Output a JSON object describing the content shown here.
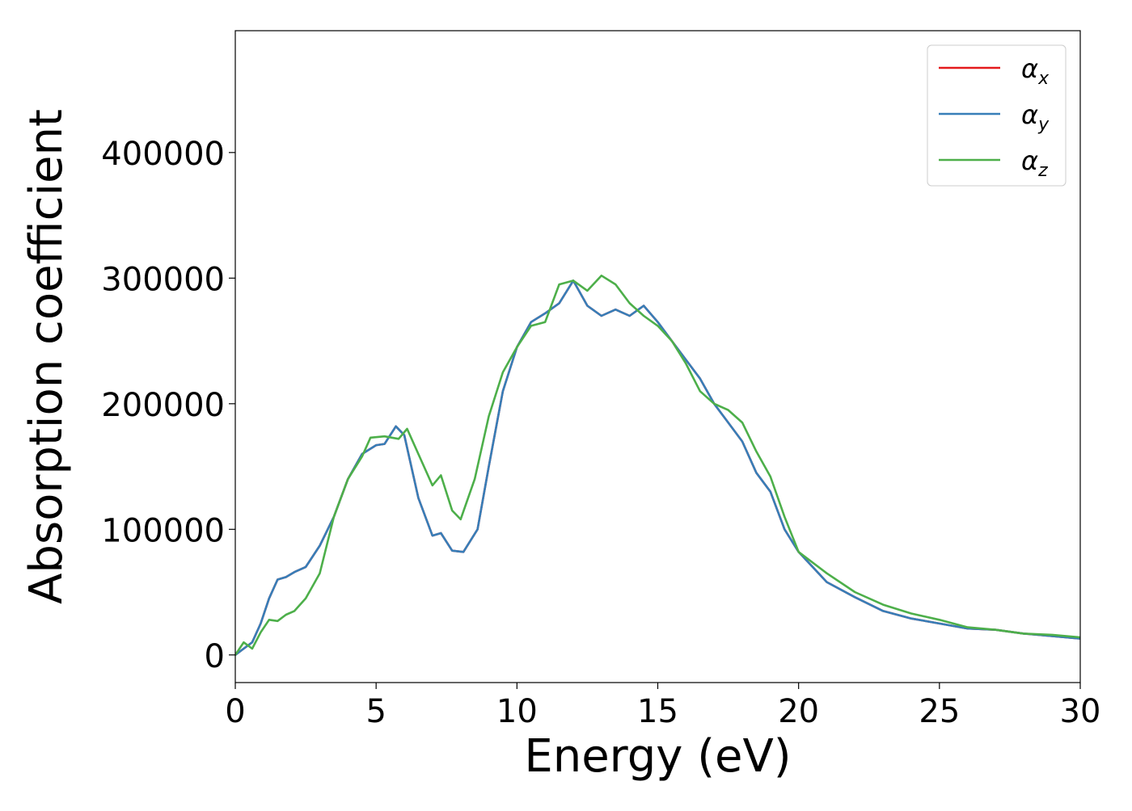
{
  "chart_data": {
    "type": "line",
    "xlabel": "Energy (eV)",
    "ylabel": "Absorption coefficient",
    "xlim": [
      0,
      30
    ],
    "ylim": [
      -22000,
      497000
    ],
    "xticks": [
      0,
      5,
      10,
      15,
      20,
      25,
      30
    ],
    "xtick_labels": [
      "0",
      "5",
      "10",
      "15",
      "20",
      "25",
      "30"
    ],
    "yticks": [
      0,
      100000,
      200000,
      300000,
      400000
    ],
    "ytick_labels": [
      "0",
      "100000",
      "200000",
      "300000",
      "400000"
    ],
    "grid": false,
    "legend": {
      "position": "top-right",
      "entries": [
        {
          "label": "α",
          "sub": "x",
          "color": "#e41a1c"
        },
        {
          "label": "α",
          "sub": "y",
          "color": "#377eb8"
        },
        {
          "label": "α",
          "sub": "z",
          "color": "#4daf4a"
        }
      ]
    },
    "series": [
      {
        "color": "#e41a1c",
        "x": [
          0,
          0.3,
          0.6,
          0.9,
          1.2,
          1.5,
          1.8,
          2.1,
          2.5,
          3,
          3.5,
          4,
          4.5,
          5,
          5.3,
          5.7,
          6,
          6.5,
          7,
          7.3,
          7.7,
          8.1,
          8.6,
          9,
          9.5,
          10,
          10.5,
          11,
          11.5,
          12,
          12.5,
          13,
          13.5,
          14,
          14.5,
          15,
          15.5,
          16,
          16.5,
          17,
          17.5,
          18,
          18.5,
          19,
          19.5,
          20,
          21,
          22,
          23,
          24,
          25,
          26,
          27,
          28,
          29,
          30
        ],
        "y": [
          0,
          5000,
          10000,
          25000,
          45000,
          60000,
          62000,
          66000,
          70000,
          87000,
          110000,
          140000,
          160000,
          167000,
          168000,
          182000,
          175000,
          125000,
          95000,
          97000,
          83000,
          82000,
          100000,
          150000,
          210000,
          245000,
          265000,
          272000,
          280000,
          298000,
          278000,
          270000,
          275000,
          270000,
          278000,
          265000,
          250000,
          235000,
          220000,
          200000,
          185000,
          170000,
          145000,
          130000,
          100000,
          82000,
          58000,
          46000,
          35000,
          29000,
          25000,
          21000,
          20000,
          17000,
          15000,
          13000
        ]
      },
      {
        "color": "#377eb8",
        "x": [
          0,
          0.3,
          0.6,
          0.9,
          1.2,
          1.5,
          1.8,
          2.1,
          2.5,
          3,
          3.5,
          4,
          4.5,
          5,
          5.3,
          5.7,
          6,
          6.5,
          7,
          7.3,
          7.7,
          8.1,
          8.6,
          9,
          9.5,
          10,
          10.5,
          11,
          11.5,
          12,
          12.5,
          13,
          13.5,
          14,
          14.5,
          15,
          15.5,
          16,
          16.5,
          17,
          17.5,
          18,
          18.5,
          19,
          19.5,
          20,
          21,
          22,
          23,
          24,
          25,
          26,
          27,
          28,
          29,
          30
        ],
        "y": [
          0,
          5000,
          10000,
          25000,
          45000,
          60000,
          62000,
          66000,
          70000,
          87000,
          110000,
          140000,
          160000,
          167000,
          168000,
          182000,
          175000,
          125000,
          95000,
          97000,
          83000,
          82000,
          100000,
          150000,
          210000,
          245000,
          265000,
          272000,
          280000,
          298000,
          278000,
          270000,
          275000,
          270000,
          278000,
          265000,
          250000,
          235000,
          220000,
          200000,
          185000,
          170000,
          145000,
          130000,
          100000,
          82000,
          58000,
          46000,
          35000,
          29000,
          25000,
          21000,
          20000,
          17000,
          15000,
          13000
        ]
      },
      {
        "color": "#4daf4a",
        "x": [
          0,
          0.3,
          0.6,
          0.9,
          1.2,
          1.5,
          1.8,
          2.1,
          2.5,
          3,
          3.5,
          4,
          4.5,
          4.8,
          5.3,
          5.8,
          6.1,
          6.5,
          7,
          7.3,
          7.7,
          8,
          8.5,
          9,
          9.5,
          10,
          10.5,
          11,
          11.5,
          12,
          12.5,
          13,
          13.5,
          14,
          14.5,
          15,
          15.5,
          16,
          16.5,
          17,
          17.5,
          18,
          18.5,
          19,
          19.5,
          20,
          21,
          22,
          23,
          24,
          25,
          26,
          27,
          28,
          29,
          30
        ],
        "y": [
          0,
          10000,
          5000,
          18000,
          28000,
          27000,
          32000,
          35000,
          45000,
          65000,
          110000,
          140000,
          158000,
          173000,
          174000,
          172000,
          180000,
          160000,
          135000,
          143000,
          115000,
          108000,
          140000,
          190000,
          225000,
          245000,
          262000,
          265000,
          295000,
          298000,
          290000,
          302000,
          295000,
          280000,
          270000,
          262000,
          250000,
          232000,
          210000,
          200000,
          195000,
          185000,
          162000,
          142000,
          110000,
          82000,
          65000,
          50000,
          40000,
          33000,
          28000,
          22000,
          20000,
          17000,
          16000,
          14000
        ]
      }
    ]
  }
}
